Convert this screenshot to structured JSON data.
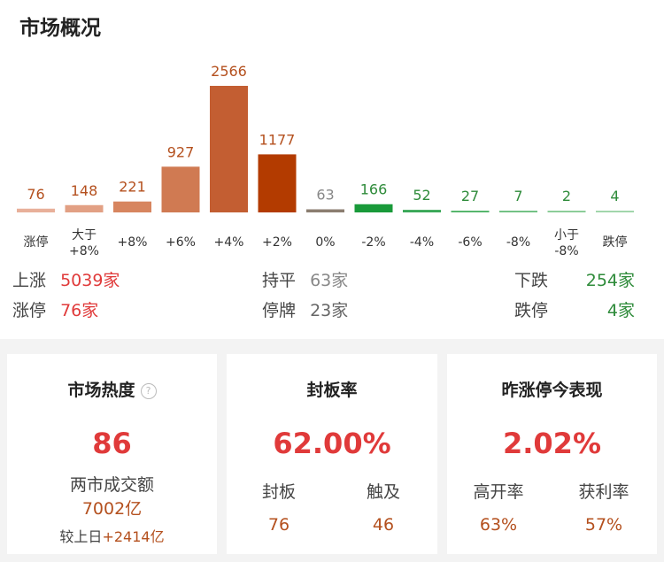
{
  "title": "市场概况",
  "chart_data": {
    "type": "bar",
    "categories": [
      "涨停",
      "大于\n+8%",
      "+8%",
      "+6%",
      "+4%",
      "+2%",
      "0%",
      "-2%",
      "-4%",
      "-6%",
      "-8%",
      "小于\n-8%",
      "跌停"
    ],
    "values": [
      76,
      148,
      221,
      927,
      2566,
      1177,
      63,
      166,
      52,
      27,
      7,
      2,
      4
    ],
    "colors": [
      "#e8b09a",
      "#e2a084",
      "#d7855f",
      "#d07a52",
      "#c35e32",
      "#b33b00",
      "#8b7e70",
      "#199a3a",
      "#3aa858",
      "#57b66d",
      "#73c285",
      "#8ccd99",
      "#a2d6ab"
    ],
    "label_colors": [
      "#b4501e",
      "#b4501e",
      "#b4501e",
      "#b4501e",
      "#b4501e",
      "#b4501e",
      "#888888",
      "#2e8b3a",
      "#2e8b3a",
      "#2e8b3a",
      "#2e8b3a",
      "#2e8b3a",
      "#2e8b3a"
    ]
  },
  "stats": {
    "up_label": "上涨",
    "up_value": "5039家",
    "limit_up_label": "涨停",
    "limit_up_value": "76家",
    "flat_label": "持平",
    "flat_value": "63家",
    "halt_label": "停牌",
    "halt_value": "23家",
    "down_label": "下跌",
    "down_value": "254家",
    "limit_down_label": "跌停",
    "limit_down_value": "4家"
  },
  "cards": {
    "heat": {
      "title": "市场热度",
      "value": "86",
      "turnover_label": "两市成交额",
      "turnover_value": "7002亿",
      "change_prefix": "较上日",
      "change_value": "+2414亿"
    },
    "seal": {
      "title": "封板率",
      "value": "62.00%",
      "sealed_label": "封板",
      "sealed_value": "76",
      "touched_label": "触及",
      "touched_value": "46"
    },
    "yesterday": {
      "title": "昨涨停今表现",
      "value": "2.02%",
      "open_high_label": "高开率",
      "open_high_value": "63%",
      "profit_label": "获利率",
      "profit_value": "57%"
    }
  }
}
